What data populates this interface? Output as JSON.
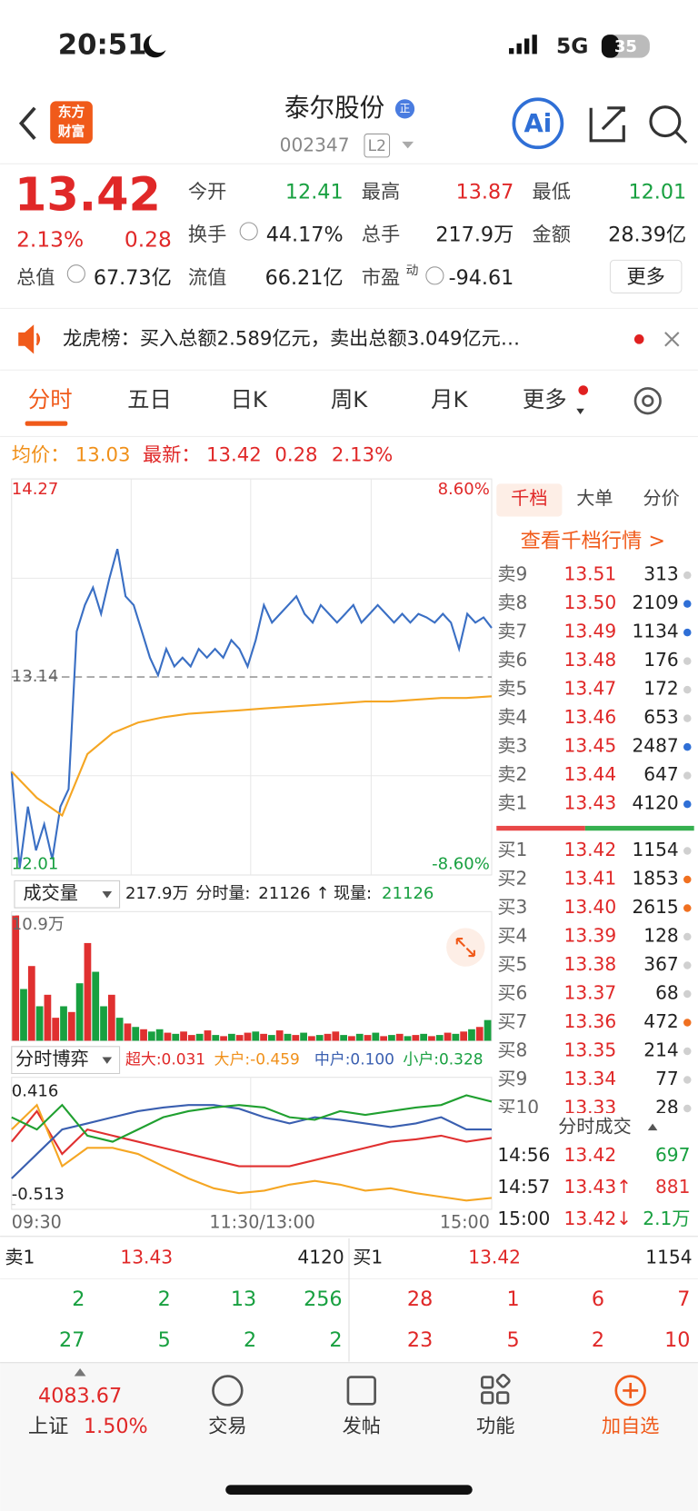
{
  "status_bar": {
    "time": "20:51",
    "network": "5G",
    "battery": "35"
  },
  "header": {
    "logo": [
      "东方",
      "财富"
    ],
    "name": "泰尔股份",
    "badge": "正",
    "code": "002347",
    "level": "L2",
    "ai": "Ai"
  },
  "quote": {
    "price": "13.42",
    "change_pct": "2.13%",
    "change": "0.28",
    "fields": [
      {
        "label": "今开",
        "value": "12.41"
      },
      {
        "label": "最高",
        "value": "13.87"
      },
      {
        "label": "最低",
        "value": "12.01"
      },
      {
        "label": "换手",
        "value": "44.17%"
      },
      {
        "label": "总手",
        "value": "217.9万"
      },
      {
        "label": "金额",
        "value": "28.39亿"
      },
      {
        "label": "总值",
        "value": "67.73亿"
      },
      {
        "label": "流值",
        "value": "66.21亿"
      },
      {
        "label": "市盈",
        "label_sup": "动",
        "value": "-94.61"
      }
    ],
    "more": "更多"
  },
  "notice": "龙虎榜：买入总额2.589亿元，卖出总额3.049亿元…",
  "tabs": [
    "分时",
    "五日",
    "日K",
    "周K",
    "月K",
    "更多"
  ],
  "avg_row": {
    "avg_label": "均价：",
    "avg": "13.03",
    "latest_label": "最新：",
    "latest": "13.42",
    "change": "0.28",
    "change_pct": "2.13%"
  },
  "chart_data": [
    {
      "type": "line",
      "ylim": [
        12.01,
        14.27
      ],
      "yticks": [
        12.01,
        13.14,
        14.27
      ],
      "right_labels": [
        "8.60%",
        "-8.60%"
      ],
      "series": [
        {
          "color": "#3a6fc4",
          "values": [
            12.6,
            12.05,
            12.4,
            12.15,
            12.3,
            12.1,
            12.4,
            12.5,
            13.4,
            13.55,
            13.65,
            13.5,
            13.7,
            13.87,
            13.6,
            13.55,
            13.4,
            13.25,
            13.15,
            13.3,
            13.2,
            13.25,
            13.2,
            13.3,
            13.25,
            13.3,
            13.25,
            13.35,
            13.3,
            13.2,
            13.35,
            13.55,
            13.45,
            13.5,
            13.55,
            13.6,
            13.5,
            13.45,
            13.55,
            13.5,
            13.45,
            13.5,
            13.55,
            13.45,
            13.5,
            13.55,
            13.5,
            13.45,
            13.5,
            13.45,
            13.5,
            13.48,
            13.45,
            13.5,
            13.45,
            13.3,
            13.5,
            13.45,
            13.48,
            13.42
          ]
        },
        {
          "color": "#f5a623",
          "values": [
            12.6,
            12.45,
            12.35,
            12.7,
            12.82,
            12.88,
            12.91,
            12.93,
            12.94,
            12.95,
            12.96,
            12.97,
            12.98,
            12.99,
            13.0,
            13.0,
            13.01,
            13.02,
            13.02,
            13.03
          ]
        }
      ]
    },
    {
      "type": "bar",
      "ylim": [
        0,
        10.9
      ],
      "yticks": [
        {
          "value": 10.9,
          "label": "10.9万"
        }
      ],
      "values": [
        10.9,
        4.5,
        6.5,
        3,
        4,
        2,
        3,
        2.5,
        5,
        8.5,
        6,
        3,
        4,
        2,
        1.5,
        1.2,
        1,
        0.8,
        1,
        0.7,
        0.6,
        0.8,
        0.5,
        0.6,
        0.9,
        0.5,
        0.4,
        0.6,
        0.5,
        0.7,
        0.8,
        0.6,
        0.5,
        0.9,
        0.6,
        0.5,
        0.7,
        0.4,
        0.5,
        0.6,
        0.8,
        0.5,
        0.4,
        0.6,
        0.5,
        0.7,
        0.4,
        0.5,
        0.6,
        0.4,
        0.5,
        0.6,
        0.4,
        0.5,
        0.7,
        0.6,
        0.8,
        1,
        1.2,
        1.8
      ],
      "colors": [
        "#e03030",
        "#18a040",
        "#e03030",
        "#18a040",
        "#e03030",
        "#e03030",
        "#18a040",
        "#e03030",
        "#18a040",
        "#e03030",
        "#18a040",
        "#18a040",
        "#e03030",
        "#18a040",
        "#e03030",
        "#18a040",
        "#e03030",
        "#18a040",
        "#18a040",
        "#e03030",
        "#18a040",
        "#e03030",
        "#e03030",
        "#18a040",
        "#e03030",
        "#18a040",
        "#e03030",
        "#18a040",
        "#e03030",
        "#e03030",
        "#18a040",
        "#e03030",
        "#18a040",
        "#e03030",
        "#18a040",
        "#e03030",
        "#18a040",
        "#e03030",
        "#18a040",
        "#e03030",
        "#e03030",
        "#18a040",
        "#e03030",
        "#18a040",
        "#e03030",
        "#18a040",
        "#e03030",
        "#18a040",
        "#e03030",
        "#18a040",
        "#e03030",
        "#18a040",
        "#e03030",
        "#18a040",
        "#e03030",
        "#18a040",
        "#e03030",
        "#18a040",
        "#e03030",
        "#18a040"
      ]
    },
    {
      "type": "line",
      "ylim": [
        -0.513,
        0.416
      ],
      "yticks": [
        -0.513,
        0.416
      ],
      "series": [
        {
          "color": "#e03030",
          "values": [
            0.0,
            0.25,
            -0.1,
            0.1,
            0.05,
            0.0,
            -0.05,
            -0.1,
            -0.15,
            -0.2,
            -0.2,
            -0.2,
            -0.15,
            -0.1,
            -0.05,
            0.0,
            0.02,
            0.05,
            0.0,
            0.031
          ]
        },
        {
          "color": "#f5a623",
          "values": [
            0.1,
            0.3,
            -0.2,
            -0.05,
            -0.05,
            -0.1,
            -0.2,
            -0.3,
            -0.38,
            -0.42,
            -0.4,
            -0.35,
            -0.32,
            -0.35,
            -0.4,
            -0.38,
            -0.42,
            -0.45,
            -0.48,
            -0.459
          ]
        },
        {
          "color": "#3a5fb0",
          "values": [
            -0.3,
            -0.1,
            0.1,
            0.15,
            0.2,
            0.25,
            0.28,
            0.3,
            0.3,
            0.27,
            0.2,
            0.15,
            0.2,
            0.18,
            0.15,
            0.12,
            0.15,
            0.2,
            0.1,
            0.1
          ]
        },
        {
          "color": "#20a030",
          "values": [
            0.2,
            0.1,
            0.3,
            0.05,
            0.0,
            0.1,
            0.2,
            0.25,
            0.28,
            0.3,
            0.28,
            0.2,
            0.18,
            0.25,
            0.22,
            0.25,
            0.28,
            0.3,
            0.38,
            0.328
          ]
        }
      ]
    }
  ],
  "volume_header": {
    "selector": "成交量",
    "total": "217.9万",
    "period_label": "分时量:",
    "period": "21126 ↑",
    "current_label": "现量:",
    "current": "21126"
  },
  "game_header": {
    "selector": "分时博弈",
    "super": "超大:0.031",
    "large": "大户:-0.459",
    "medium": "中户:0.100",
    "small": "小户:0.328"
  },
  "time_axis": [
    "09:30",
    "11:30/13:00",
    "15:00"
  ],
  "order_book": {
    "tabs": [
      "千档",
      "大单",
      "分价"
    ],
    "link": "查看千档行情 >",
    "asks": [
      {
        "label": "卖9",
        "price": "13.51",
        "volume": "313",
        "dot": "#d0d0d0"
      },
      {
        "label": "卖8",
        "price": "13.50",
        "volume": "2109",
        "dot": "#2f6fd6"
      },
      {
        "label": "卖7",
        "price": "13.49",
        "volume": "1134",
        "dot": "#2f6fd6"
      },
      {
        "label": "卖6",
        "price": "13.48",
        "volume": "176",
        "dot": "#d0d0d0"
      },
      {
        "label": "卖5",
        "price": "13.47",
        "volume": "172",
        "dot": "#d0d0d0"
      },
      {
        "label": "卖4",
        "price": "13.46",
        "volume": "653",
        "dot": "#d0d0d0"
      },
      {
        "label": "卖3",
        "price": "13.45",
        "volume": "2487",
        "dot": "#2f6fd6"
      },
      {
        "label": "卖2",
        "price": "13.44",
        "volume": "647",
        "dot": "#d0d0d0"
      },
      {
        "label": "卖1",
        "price": "13.43",
        "volume": "4120",
        "dot": "#2f6fd6"
      }
    ],
    "bids": [
      {
        "label": "买1",
        "price": "13.42",
        "volume": "1154",
        "dot": "#d0d0d0"
      },
      {
        "label": "买2",
        "price": "13.41",
        "volume": "1853",
        "dot": "#f07020"
      },
      {
        "label": "买3",
        "price": "13.40",
        "volume": "2615",
        "dot": "#f07020"
      },
      {
        "label": "买4",
        "price": "13.39",
        "volume": "128",
        "dot": "#d0d0d0"
      },
      {
        "label": "买5",
        "price": "13.38",
        "volume": "367",
        "dot": "#d0d0d0"
      },
      {
        "label": "买6",
        "price": "13.37",
        "volume": "68",
        "dot": "#d0d0d0"
      },
      {
        "label": "买7",
        "price": "13.36",
        "volume": "472",
        "dot": "#f07020"
      },
      {
        "label": "买8",
        "price": "13.35",
        "volume": "214",
        "dot": "#d0d0d0"
      },
      {
        "label": "买9",
        "price": "13.34",
        "volume": "77",
        "dot": "#d0d0d0"
      },
      {
        "label": "买10",
        "price": "13.33",
        "volume": "28",
        "dot": "#d0d0d0"
      }
    ],
    "trades_title": "分时成交",
    "trades": [
      {
        "time": "14:56",
        "price": "13.42",
        "volume": "697",
        "color": "#18a040"
      },
      {
        "time": "14:57",
        "price": "13.43↑",
        "volume": "881",
        "color": "#e03030"
      },
      {
        "time": "15:00",
        "price": "13.42↓",
        "volume": "2.1万",
        "color": "#18a040"
      }
    ]
  },
  "level1": {
    "ask_label": "卖1",
    "ask_price": "13.43",
    "ask_volume": "4120",
    "bid_label": "买1",
    "bid_price": "13.42",
    "bid_volume": "1154",
    "ask_rows": [
      [
        "2",
        "2",
        "13",
        "256"
      ],
      [
        "27",
        "5",
        "2",
        "2"
      ]
    ],
    "bid_rows": [
      [
        "28",
        "1",
        "6",
        "7"
      ],
      [
        "23",
        "5",
        "2",
        "10"
      ]
    ]
  },
  "tab_bar": {
    "index_value": "4083.67",
    "index_name": "上证",
    "index_change": "1.50%",
    "items": [
      "交易",
      "发帖",
      "功能",
      "加自选"
    ]
  }
}
